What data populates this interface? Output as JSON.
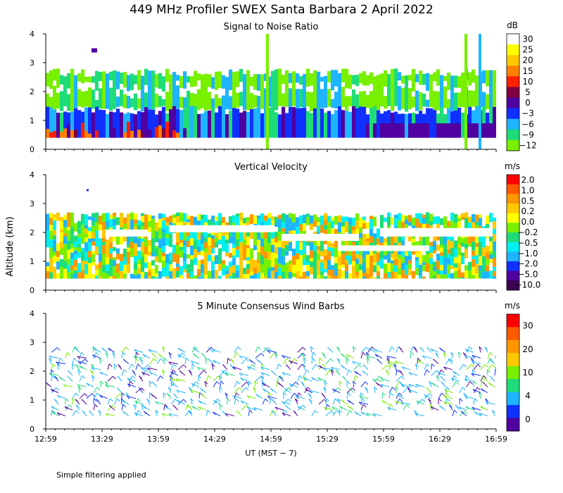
{
  "title": "449 MHz Profiler SWEX Santa Barbara  2 April 2022",
  "y_axis_label": "Altitude (km)",
  "x_axis_label": "UT  (MST − 7)",
  "footnote": "Simple filtering applied",
  "chart_data": [
    {
      "type": "heatmap",
      "title": "Signal to Noise Ratio",
      "units": "dB",
      "ylim": [
        0,
        4
      ],
      "y_ticks": [
        "0",
        "1",
        "2",
        "3",
        "4"
      ],
      "x_ticks": [
        "12:59",
        "13:29",
        "13:59",
        "14:29",
        "14:59",
        "15:29",
        "15:59",
        "16:29",
        "16:59"
      ],
      "colorbar": {
        "labels": [
          "30",
          "25",
          "20",
          "15",
          "10",
          "5",
          "0",
          "−3",
          "−6",
          "−9",
          "−12"
        ],
        "colors": [
          "#ffffff",
          "#ffff00",
          "#ffc800",
          "#ff8000",
          "#ff2000",
          "#800040",
          "#5000a0",
          "#1030ff",
          "#1eb4ff",
          "#1edc78",
          "#78f000"
        ]
      },
      "layers": [
        {
          "z_range": [
            0.4,
            0.9
          ],
          "description": "near-surface, 5 to 30 dB",
          "colors": [
            "#ff2000",
            "#ff8000",
            "#800040"
          ]
        },
        {
          "z_range": [
            0.5,
            1.5
          ],
          "description": "boundary layer, -3 to 5 dB",
          "colors": [
            "#5000a0",
            "#1030ff",
            "#800040"
          ]
        },
        {
          "z_range": [
            1.5,
            2.7
          ],
          "description": "upper echoes, -12 to -3 dB",
          "colors": [
            "#1eb4ff",
            "#1edc78",
            "#78f000"
          ]
        }
      ]
    },
    {
      "type": "heatmap",
      "title": "Vertical Velocity",
      "units": "m/s",
      "ylim": [
        0,
        4
      ],
      "y_ticks": [
        "0",
        "1",
        "2",
        "3",
        "4"
      ],
      "x_ticks": [
        "12:59",
        "13:29",
        "13:59",
        "14:29",
        "14:59",
        "15:29",
        "15:59",
        "16:29",
        "16:59"
      ],
      "colorbar": {
        "labels": [
          "2.0",
          "1.0",
          "0.5",
          "0.2",
          "0.0",
          "−0.2",
          "−0.5",
          "−1.0",
          "−2.0",
          "−5.0",
          "−10.0"
        ],
        "colors": [
          "#ff0000",
          "#ff5a00",
          "#ff9600",
          "#ffc800",
          "#ffff00",
          "#78f000",
          "#1edc78",
          "#00f0f0",
          "#1eb4ff",
          "#1030ff",
          "#5000a0",
          "#3c0050"
        ]
      },
      "data_extent_km": [
        0.4,
        2.7
      ]
    },
    {
      "type": "wind-barbs",
      "title": "5 Minute Consensus Wind Barbs",
      "units": "m/s",
      "ylim": [
        0,
        4
      ],
      "y_ticks": [
        "0",
        "1",
        "2",
        "3",
        "4"
      ],
      "x_ticks": [
        "12:59",
        "13:29",
        "13:59",
        "14:29",
        "14:59",
        "15:29",
        "15:59",
        "16:29",
        "16:59"
      ],
      "colorbar": {
        "labels": [
          "30",
          "20",
          "10",
          "4",
          "0"
        ],
        "colors": [
          "#ff0000",
          "#ff5a00",
          "#ff9600",
          "#ffc800",
          "#78f000",
          "#1edc78",
          "#1eb4ff",
          "#1030ff",
          "#5000a0"
        ]
      },
      "data_extent_km": [
        0.4,
        2.8
      ]
    }
  ]
}
